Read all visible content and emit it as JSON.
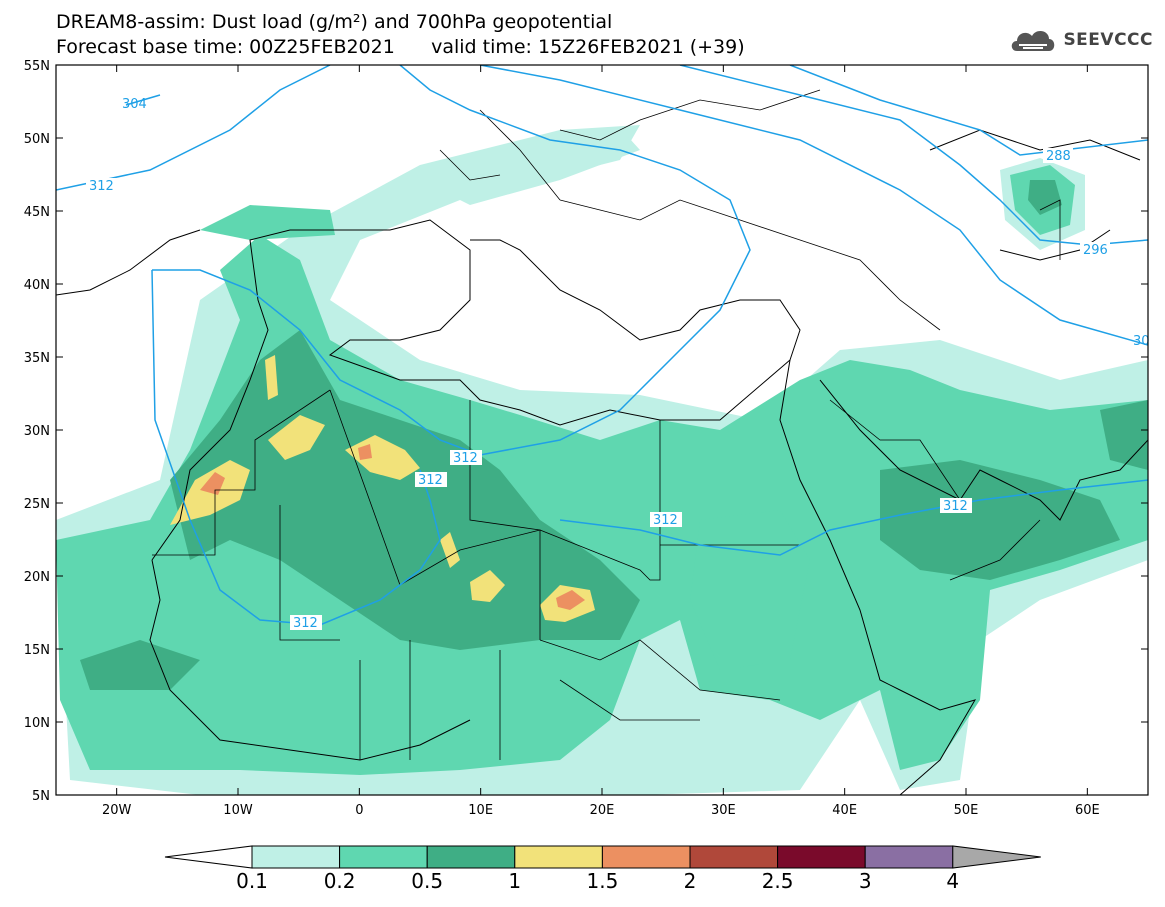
{
  "header": {
    "title_line1": "DREAM8-assim: Dust load (g/m²) and 700hPa geopotential",
    "title_line2_base": "Forecast base time: 00Z25FEB2021",
    "title_line2_valid": "valid time: 15Z26FEB2021 (+39)"
  },
  "logo": {
    "text": "SEEVCCC",
    "icon": "cloud-icon"
  },
  "map": {
    "lat_labels": [
      "55N",
      "50N",
      "45N",
      "40N",
      "35N",
      "30N",
      "25N",
      "20N",
      "15N",
      "10N",
      "5N"
    ],
    "lon_labels": [
      "20W",
      "10W",
      "0",
      "10E",
      "20E",
      "30E",
      "40E",
      "50E",
      "60E"
    ],
    "contour_labels": [
      "304",
      "312",
      "288",
      "296",
      "312",
      "312",
      "312",
      "312",
      "312",
      "30"
    ],
    "lon_range": [
      -25,
      65
    ],
    "lat_range": [
      5,
      55
    ]
  },
  "legend": {
    "colors": [
      "#bff0e6",
      "#5fd7b0",
      "#3fae85",
      "#f2e27a",
      "#ec9061",
      "#b0483a",
      "#7a0a2b",
      "#8a6fa3",
      "#a8a8a8"
    ],
    "labels": [
      "0.1",
      "0.2",
      "0.5",
      "1",
      "1.5",
      "2",
      "2.5",
      "3",
      "4"
    ]
  }
}
